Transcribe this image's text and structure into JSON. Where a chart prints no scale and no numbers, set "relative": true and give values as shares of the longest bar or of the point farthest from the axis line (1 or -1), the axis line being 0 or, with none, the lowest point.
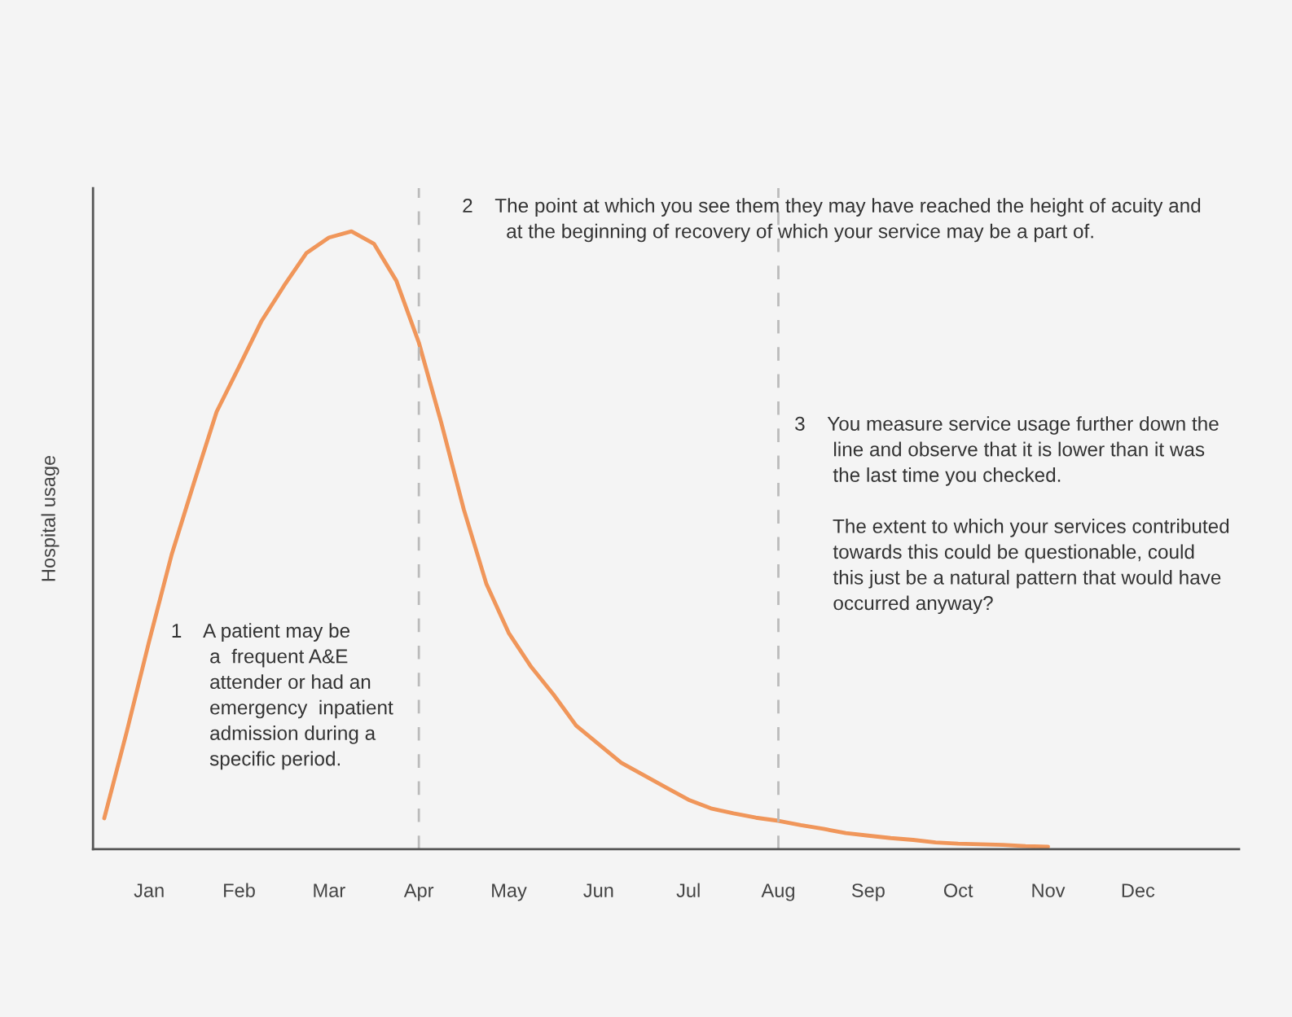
{
  "chart_data": {
    "type": "line",
    "relative": true,
    "ylabel": "Hospital usage",
    "categories": [
      null,
      null,
      "Jan",
      null,
      null,
      null,
      "Feb",
      null,
      null,
      null,
      "Mar",
      null,
      null,
      null,
      "Apr",
      null,
      null,
      null,
      "May",
      null,
      null,
      null,
      "Jun",
      null,
      null,
      null,
      "Jul",
      null,
      null,
      null,
      "Aug",
      null,
      null,
      null,
      "Sep",
      null,
      null,
      null,
      "Oct",
      null,
      null,
      null,
      "Nov",
      null,
      null,
      null,
      "Dec",
      null,
      null,
      null,
      null
    ],
    "series": [
      {
        "color": "#f0965a",
        "values": [
          0.05,
          0.19,
          0.337,
          0.477,
          0.594,
          0.708,
          0.781,
          0.855,
          0.912,
          0.965,
          0.99,
          1.0,
          0.98,
          0.92,
          0.82,
          0.69,
          0.55,
          0.43,
          0.35,
          0.295,
          0.25,
          0.2,
          0.17,
          0.14,
          0.12,
          0.1,
          0.08,
          0.066,
          0.058,
          0.051,
          0.046,
          0.039,
          0.033,
          0.026,
          0.022,
          0.018,
          0.015,
          0.011,
          0.009,
          0.008,
          0.007,
          0.005,
          0.004,
          null,
          null,
          null,
          null,
          null,
          null,
          null,
          null
        ]
      }
    ],
    "ref_lines": [
      {
        "axis": "x",
        "value": "Apr",
        "color": "#bbbbbb",
        "line_style": "dashed"
      },
      {
        "axis": "x",
        "value": "Aug",
        "color": "#bbbbbb",
        "line_style": "dashed"
      }
    ],
    "grid": false,
    "legend": false,
    "marker": "none",
    "line_style": "solid",
    "annotations": [
      "1    A patient may be\n       a  frequent A&E\n       attender or had an\n       emergency  inpatient\n       admission during a\n       specific period.",
      "2    The point at which you see them they may have reached the height of acuity and\n        at the beginning of recovery of which your service may be a part of.",
      "3    You measure service usage further down the\n       line and observe that it is lower than it was\n       the last time you checked.\n\n       The extent to which your services contributed\n       towards this could be questionable, could\n       this just be a natural pattern that would have\n       occurred anyway?"
    ]
  }
}
